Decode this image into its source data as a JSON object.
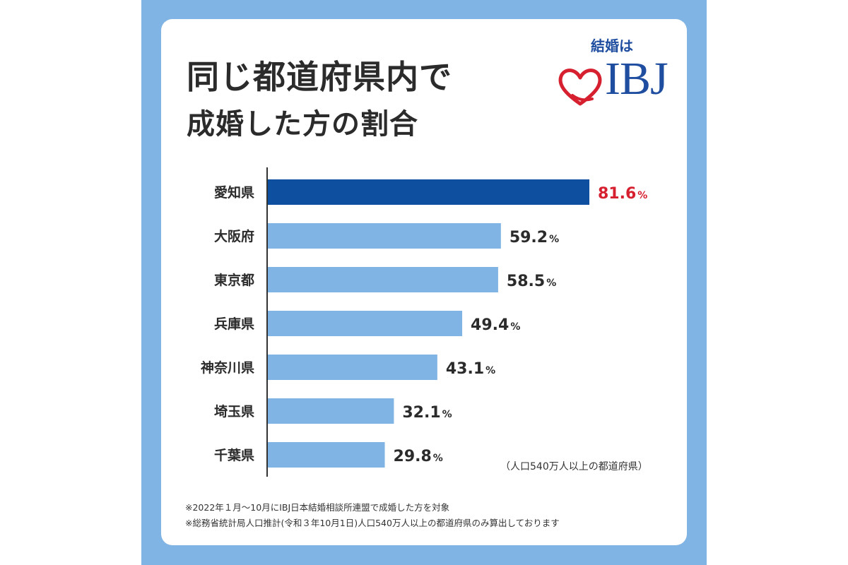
{
  "title_line1": "同じ都道府県内で",
  "title_line2": "成婚した方の割合",
  "logo": {
    "tagline": "結婚は",
    "brand": "IBJ"
  },
  "population_note": "（人口540万人以上の都道府県）",
  "footnotes": [
    "※2022年１月〜10月にIBJ日本結婚相談所連盟で成婚した方を対象",
    "※総務省統計局人口推計(令和３年10月1日)人口540万人以上の都道府県のみ算出しております"
  ],
  "colors": {
    "frame": "#7fb4e4",
    "bar_default": "#7fb4e4",
    "bar_highlight": "#0e4f9f",
    "label_highlight": "#d6202f",
    "label_default": "#2b2b2b",
    "axis": "#333333"
  },
  "chart_data": {
    "type": "bar",
    "orientation": "horizontal",
    "categories": [
      "愛知県",
      "大阪府",
      "東京都",
      "兵庫県",
      "神奈川県",
      "埼玉県",
      "千葉県"
    ],
    "values": [
      81.6,
      59.2,
      58.5,
      49.4,
      43.1,
      32.1,
      29.8
    ],
    "value_labels": [
      "81.6",
      "59.2",
      "58.5",
      "49.4",
      "43.1",
      "32.1",
      "29.8"
    ],
    "unit": "%",
    "highlight_index": 0,
    "xlim": [
      0,
      81.6
    ],
    "grid": false,
    "title": "同じ都道府県内で成婚した方の割合"
  }
}
